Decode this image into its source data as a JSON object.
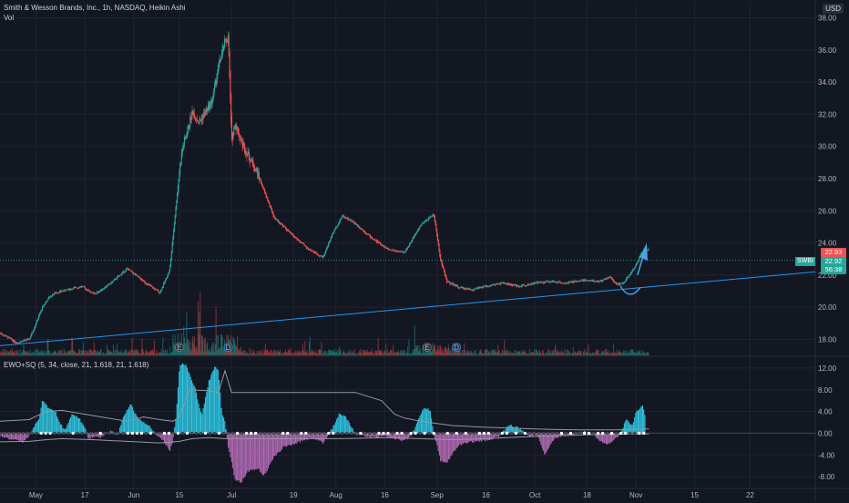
{
  "header": {
    "title": "Smith & Wesson Brands, Inc., 1h, NASDAQ, Heikin Ashi",
    "vol_label": "Vol",
    "currency": "USD",
    "indicator_label": "EWO+SQ (5, 34, close, 21, 1.618, 21, 1.618)",
    "symbol_badge": "SWBI"
  },
  "price_badges": {
    "high": "22.93",
    "last": "22.92",
    "countdown": "56:38"
  },
  "colors": {
    "background": "#131722",
    "grid": "#1f2431",
    "up": "#26a69a",
    "down": "#ef5350",
    "trendline": "#2196f3",
    "ewo_pos": "#2fc4e0",
    "ewo_neg": "#b06ab3",
    "bands": "#9598a1",
    "annotation": "#4aa3e8"
  },
  "chart_data": [
    {
      "type": "line",
      "subtype": "heikin-ashi-candles",
      "title": "Smith & Wesson Brands, Inc., 1h, NASDAQ, Heikin Ashi",
      "ylim": [
        17,
        39
      ],
      "y_ticks": [
        18,
        20,
        22,
        24,
        26,
        28,
        30,
        32,
        34,
        36,
        38
      ],
      "y_tick_labels": [
        "18.00",
        "20.00",
        "22.00",
        "24.00",
        "26.00",
        "28.00",
        "30.00",
        "32.00",
        "34.00",
        "36.00",
        "38.00"
      ],
      "x_tick_labels": [
        "May",
        "17",
        "Jun",
        "15",
        "Jul",
        "19",
        "Aug",
        "16",
        "Sep",
        "16",
        "Oct",
        "18",
        "Nov",
        "15",
        "22"
      ],
      "x_ticks_day": [
        2,
        17,
        32,
        46,
        62,
        81,
        94,
        109,
        125,
        140,
        155,
        171,
        186,
        204,
        221
      ],
      "x_day_range": [
        -9,
        241
      ],
      "grid": true,
      "series": [
        {
          "x_day": [
            -9,
            -4,
            0,
            4,
            6,
            8,
            12,
            16,
            20,
            25,
            30,
            35,
            40,
            43,
            46,
            47,
            48,
            50,
            52,
            56,
            58,
            60,
            61,
            62,
            63,
            65,
            67,
            70,
            75,
            80,
            85,
            90,
            93,
            96,
            100,
            105,
            110,
            115,
            120,
            124,
            126,
            128,
            132,
            136,
            140,
            145,
            150,
            155,
            160,
            165,
            170,
            175,
            178,
            180,
            182,
            184,
            186,
            188,
            190
          ],
          "y": [
            18.4,
            17.8,
            18.0,
            20.0,
            20.6,
            20.9,
            21.1,
            21.3,
            20.8,
            21.5,
            22.4,
            21.6,
            20.9,
            22.3,
            28.5,
            30.0,
            30.6,
            32.2,
            31.5,
            32.8,
            35.0,
            36.5,
            36.8,
            30.2,
            31.5,
            30.3,
            29.5,
            28.3,
            25.6,
            24.6,
            23.7,
            23.1,
            24.6,
            25.7,
            25.2,
            24.3,
            23.6,
            23.4,
            25.1,
            25.8,
            23.0,
            21.6,
            21.2,
            21.1,
            21.3,
            21.5,
            21.3,
            21.5,
            21.6,
            21.5,
            21.7,
            21.6,
            21.9,
            21.4,
            21.5,
            22.0,
            22.6,
            23.5,
            23.6
          ]
        },
        {
          "name": "trendline",
          "x_day": [
            -9,
            241
          ],
          "y": [
            17.6,
            22.2
          ]
        }
      ],
      "earnings_markers": [
        {
          "x_day": 46,
          "label": "E"
        },
        {
          "x_day": 122,
          "label": "E"
        }
      ],
      "dividend_markers": [
        {
          "x_day": 61,
          "label": "D"
        },
        {
          "x_day": 131,
          "label": "D"
        }
      ],
      "annotations": [
        "curved arrow (rounding bottom) near Nov 1 pointing up"
      ]
    },
    {
      "type": "bar",
      "title": "EWO+SQ (5, 34, close, 21, 1.618, 21, 1.618)",
      "ylim": [
        -10,
        14
      ],
      "y_ticks": [
        -8,
        -4,
        0,
        4,
        8,
        12
      ],
      "y_tick_labels": [
        "-8.00",
        "-4.00",
        "0.00",
        "4.00",
        "8.00",
        "12.00"
      ],
      "series": [
        {
          "name": "EWO",
          "x_day": [
            -9,
            -5,
            -2,
            0,
            3,
            4,
            6,
            8,
            9,
            11,
            13,
            15,
            17,
            18,
            20,
            22,
            25,
            27,
            29,
            31,
            33,
            35,
            37,
            39,
            41,
            42,
            43,
            44,
            45,
            46,
            47,
            48,
            49,
            51,
            52,
            53,
            55,
            57,
            58,
            59,
            60,
            61,
            62,
            63,
            65,
            67,
            70,
            72,
            75,
            78,
            81,
            84,
            87,
            90,
            93,
            95,
            97,
            100,
            103,
            106,
            109,
            112,
            115,
            117,
            119,
            121,
            123,
            124,
            125,
            126,
            128,
            130,
            132,
            135,
            138,
            141,
            144,
            147,
            150,
            153,
            156,
            158,
            161,
            163,
            165,
            167,
            170,
            173,
            176,
            178,
            180,
            181,
            183,
            185,
            186,
            188,
            189
          ],
          "y": [
            -0.5,
            -1.2,
            -1.6,
            -0.4,
            2.8,
            6.0,
            4.5,
            4.0,
            2.2,
            0.5,
            3.5,
            3.0,
            1.2,
            -1.0,
            -0.6,
            -0.8,
            0.5,
            -0.3,
            3.2,
            5.5,
            3.0,
            2.0,
            1.3,
            -0.3,
            -1.3,
            -2.2,
            -3.4,
            -1.5,
            3.0,
            12.0,
            13.0,
            12.5,
            11.0,
            8.0,
            5.0,
            3.5,
            9.5,
            12.5,
            11.5,
            4.0,
            2.0,
            -2.5,
            -5.0,
            -8.5,
            -9.0,
            -7.0,
            -6.5,
            -7.8,
            -4.5,
            -2.5,
            -2.0,
            -1.3,
            -0.8,
            -1.8,
            1.0,
            3.5,
            3.0,
            -0.2,
            -0.5,
            -0.8,
            -0.4,
            -1.0,
            -1.4,
            -0.5,
            2.0,
            4.8,
            4.2,
            -0.5,
            -2.0,
            -5.0,
            -5.5,
            -3.5,
            -2.2,
            -1.6,
            -1.5,
            -1.2,
            -0.6,
            1.5,
            1.0,
            -0.5,
            -0.4,
            -4.0,
            -1.0,
            -0.5,
            -0.3,
            -0.2,
            0.3,
            -0.3,
            -1.8,
            -2.0,
            -0.7,
            -0.5,
            2.5,
            1.4,
            4.0,
            5.0,
            3.0
          ]
        },
        {
          "name": "upper band",
          "x_day": [
            -9,
            0,
            5,
            10,
            20,
            30,
            35,
            40,
            44,
            46,
            49,
            55,
            58,
            60,
            62,
            65,
            80,
            100,
            108,
            112,
            115,
            120,
            125,
            130,
            140,
            150,
            160,
            170,
            180,
            190
          ],
          "y": [
            2.2,
            2.5,
            4.0,
            4.2,
            3.2,
            2.2,
            3.0,
            2.5,
            2.2,
            3.0,
            8.0,
            7.8,
            7.5,
            11.5,
            7.5,
            7.5,
            7.5,
            7.5,
            6.0,
            3.5,
            2.8,
            2.2,
            1.8,
            1.4,
            1.1,
            0.9,
            0.7,
            0.6,
            0.6,
            0.8
          ]
        },
        {
          "name": "lower band",
          "x_day": [
            -9,
            0,
            5,
            10,
            20,
            30,
            40,
            46,
            50,
            55,
            60,
            62,
            70,
            80,
            95,
            110,
            120,
            125,
            130,
            140,
            150,
            160,
            170,
            180,
            190
          ],
          "y": [
            -1.6,
            -1.5,
            -1.2,
            -1.0,
            -1.2,
            -1.5,
            -1.8,
            -1.5,
            -1.0,
            -0.8,
            -1.0,
            -1.0,
            -1.0,
            -1.0,
            -1.0,
            -0.8,
            -1.0,
            -1.1,
            -1.2,
            -1.0,
            -0.7,
            -0.5,
            -0.3,
            -0.2,
            -0.1
          ]
        }
      ]
    }
  ]
}
